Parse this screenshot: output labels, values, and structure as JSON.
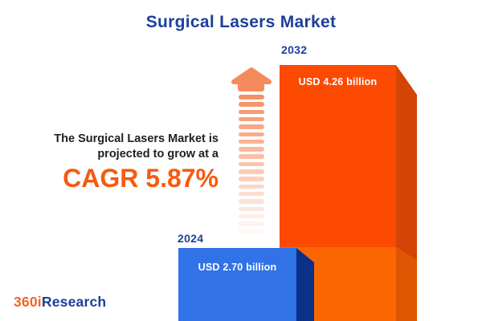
{
  "title": "Surgical Lasers Market",
  "annotation": {
    "line1": "The Surgical Lasers Market is",
    "line2": "projected to grow at a",
    "cagr_label": "CAGR 5.87%"
  },
  "chart_data": {
    "type": "bar",
    "title": "Surgical Lasers Market",
    "categories": [
      "2024",
      "2032"
    ],
    "values": [
      2.7,
      4.26
    ],
    "unit": "USD billion",
    "value_labels": [
      "USD 2.70 billion",
      "USD 4.26 billion"
    ],
    "cagr_percent": 5.87,
    "xlabel": "",
    "ylabel": "",
    "legend": "none",
    "orientation": "vertical",
    "style": "3d-infographic, bars anchored to bottom edge, growth arrow between annotation and bars"
  },
  "logo": {
    "prefix": "360i",
    "suffix": "Research"
  },
  "colors": {
    "background": "#FFFFFF",
    "title_blue": "#1C3F9A",
    "text_dark": "#202124",
    "accent_orange": "#F75A10",
    "logo_orange": "#F26522",
    "arrow_color": "#F58B5C",
    "bar2032_front_top": "#FC4A02",
    "bar2032_front_bottom": "#FA6602",
    "bar2032_side_top": "#D44404",
    "bar2032_side_bottom": "#DE5502",
    "bar2024_front": "#3172E6",
    "bar2024_side": "#0A3088"
  }
}
